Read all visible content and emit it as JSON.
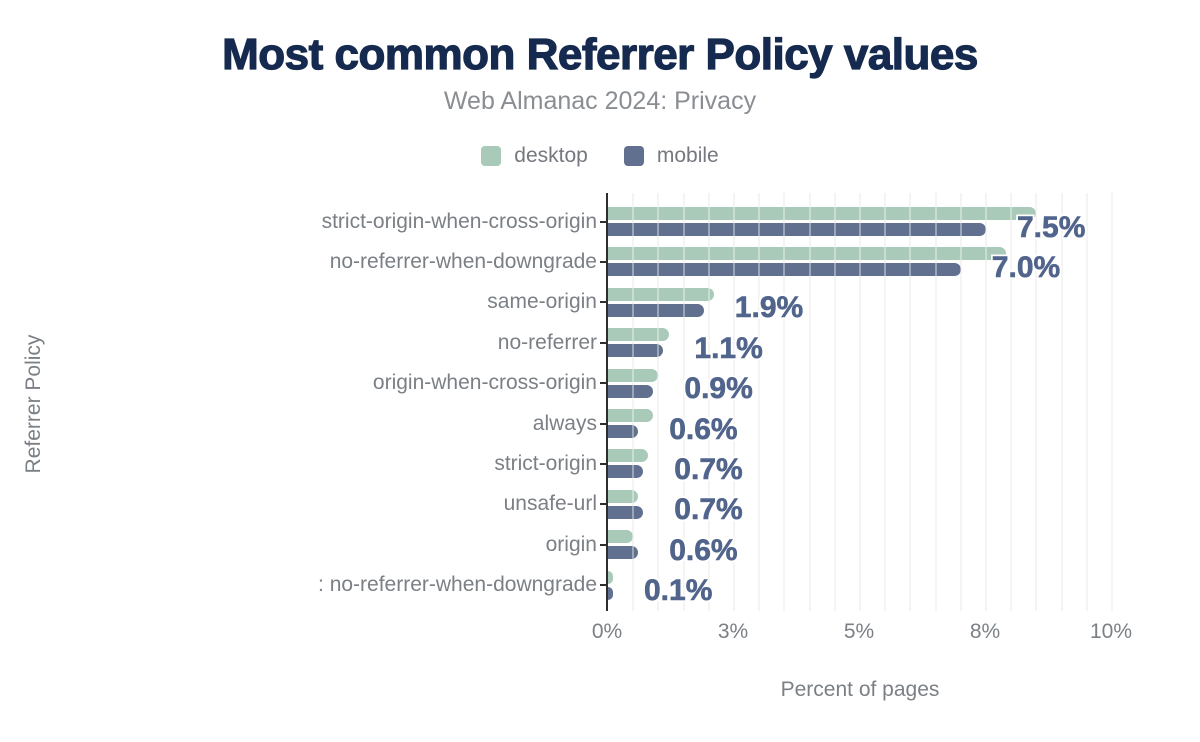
{
  "header": {
    "title": "Most common Referrer Policy values",
    "subtitle": "Web Almanac 2024: Privacy"
  },
  "legend": {
    "items": [
      {
        "label": "desktop",
        "color": "#a9cab8"
      },
      {
        "label": "mobile",
        "color": "#61708e"
      }
    ]
  },
  "colors": {
    "title_text": "#152a4e",
    "desktop_bar": "#a9cab8",
    "mobile_bar": "#61708e",
    "data_label_text": "#51648c",
    "axis_text": "#7b8086",
    "axis_line": "#2e2e2e",
    "gridline": "#efedec"
  },
  "chart_data": {
    "type": "bar",
    "orientation": "horizontal",
    "title": "Most common Referrer Policy values",
    "subtitle": "Web Almanac 2024: Privacy",
    "xlabel": "Percent of pages",
    "ylabel": "Referrer Policy",
    "xlim": [
      0,
      10
    ],
    "grid": true,
    "grid_step": 0.5,
    "legend_position": "top",
    "x_ticks": [
      {
        "value": 0,
        "label": "0%"
      },
      {
        "value": 2.5,
        "label": "3%"
      },
      {
        "value": 5,
        "label": "5%"
      },
      {
        "value": 7.5,
        "label": "8%"
      },
      {
        "value": 10,
        "label": "10%"
      }
    ],
    "categories": [
      "strict-origin-when-cross-origin",
      "no-referrer-when-downgrade",
      "same-origin",
      "no-referrer",
      "origin-when-cross-origin",
      "always",
      "strict-origin",
      "unsafe-url",
      "origin",
      ": no-referrer-when-downgrade"
    ],
    "series": [
      {
        "name": "desktop",
        "values": [
          8.5,
          7.9,
          2.1,
          1.2,
          1.0,
          0.9,
          0.8,
          0.6,
          0.5,
          0.1
        ]
      },
      {
        "name": "mobile",
        "values": [
          7.5,
          7.0,
          1.9,
          1.1,
          0.9,
          0.6,
          0.7,
          0.7,
          0.6,
          0.1
        ]
      }
    ],
    "annotations": [
      "7.5%",
      "7.0%",
      "1.9%",
      "1.1%",
      "0.9%",
      "0.6%",
      "0.7%",
      "0.7%",
      "0.6%",
      "0.1%"
    ]
  }
}
